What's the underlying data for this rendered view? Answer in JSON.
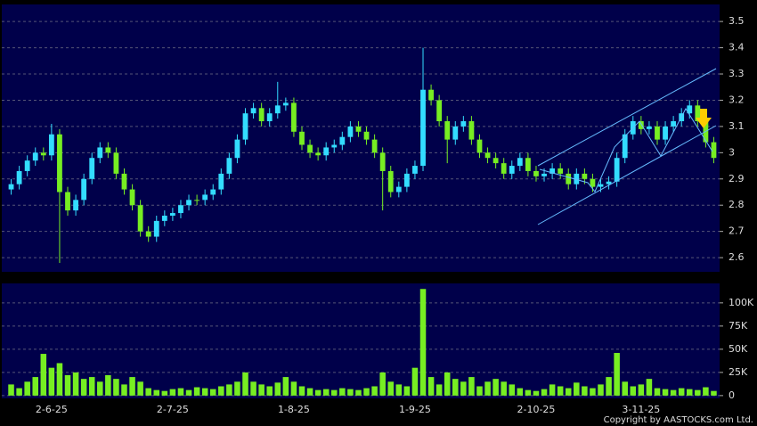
{
  "chart_data": [
    {
      "type": "candlestick",
      "up_color": "#33ddff",
      "down_color": "#77ee22",
      "grid": true,
      "ylim": [
        2.546,
        3.565
      ],
      "yticks": [
        2.6,
        2.7,
        2.8,
        2.9,
        3,
        3.1,
        3.2,
        3.3,
        3.4,
        3.5
      ],
      "open": [
        2.86,
        2.88,
        2.93,
        2.97,
        3.0,
        2.99,
        3.07,
        2.85,
        2.78,
        2.82,
        2.9,
        2.98,
        3.02,
        3.0,
        2.92,
        2.86,
        2.8,
        2.7,
        2.68,
        2.74,
        2.76,
        2.77,
        2.8,
        2.82,
        2.82,
        2.84,
        2.86,
        2.92,
        2.98,
        3.05,
        3.15,
        3.17,
        3.12,
        3.15,
        3.18,
        3.19,
        3.08,
        3.03,
        3.0,
        2.99,
        3.02,
        3.03,
        3.06,
        3.1,
        3.08,
        3.05,
        3.0,
        2.93,
        2.85,
        2.87,
        2.92,
        2.95,
        3.24,
        3.2,
        3.12,
        3.05,
        3.1,
        3.12,
        3.05,
        3.0,
        2.98,
        2.96,
        2.92,
        2.95,
        2.98,
        2.93,
        2.91,
        2.92,
        2.94,
        2.92,
        2.88,
        2.92,
        2.9,
        2.87,
        2.88,
        2.89,
        2.98,
        3.07,
        3.12,
        3.09,
        3.1,
        3.05,
        3.1,
        3.12,
        3.15,
        3.18,
        3.12,
        3.04
      ],
      "high": [
        2.9,
        2.95,
        2.99,
        3.02,
        3.02,
        3.11,
        3.09,
        2.87,
        2.84,
        2.92,
        3.0,
        3.04,
        3.04,
        3.02,
        2.94,
        2.88,
        2.82,
        2.72,
        2.76,
        2.78,
        2.79,
        2.82,
        2.84,
        2.84,
        2.86,
        2.88,
        2.94,
        3.0,
        3.07,
        3.17,
        3.19,
        3.19,
        3.17,
        3.27,
        3.21,
        3.21,
        3.1,
        3.05,
        3.02,
        3.04,
        3.05,
        3.08,
        3.12,
        3.12,
        3.1,
        3.07,
        3.02,
        2.95,
        2.89,
        2.94,
        2.97,
        3.4,
        3.26,
        3.22,
        3.14,
        3.12,
        3.14,
        3.14,
        3.07,
        3.02,
        3.0,
        2.98,
        2.97,
        3.0,
        3.0,
        2.95,
        2.94,
        2.96,
        2.96,
        2.94,
        2.94,
        2.94,
        2.92,
        2.9,
        2.91,
        3.0,
        3.09,
        3.14,
        3.14,
        3.12,
        3.12,
        3.12,
        3.14,
        3.17,
        3.2,
        3.2,
        3.14,
        3.06
      ],
      "low": [
        2.84,
        2.86,
        2.91,
        2.95,
        2.97,
        2.97,
        2.58,
        2.76,
        2.76,
        2.8,
        2.88,
        2.96,
        2.98,
        2.9,
        2.84,
        2.78,
        2.68,
        2.66,
        2.66,
        2.72,
        2.74,
        2.75,
        2.78,
        2.8,
        2.8,
        2.82,
        2.84,
        2.9,
        2.96,
        3.03,
        3.13,
        3.1,
        3.1,
        3.13,
        3.16,
        3.06,
        3.01,
        2.98,
        2.97,
        2.97,
        3.0,
        3.01,
        3.04,
        3.06,
        3.03,
        2.98,
        2.78,
        2.83,
        2.83,
        2.85,
        2.9,
        2.93,
        3.18,
        3.1,
        2.96,
        3.03,
        3.08,
        3.03,
        2.98,
        2.96,
        2.94,
        2.9,
        2.9,
        2.93,
        2.91,
        2.89,
        2.89,
        2.9,
        2.9,
        2.86,
        2.86,
        2.88,
        2.85,
        2.85,
        2.86,
        2.87,
        2.96,
        3.05,
        3.07,
        3.07,
        3.03,
        3.03,
        3.08,
        3.1,
        3.13,
        3.1,
        3.02,
        2.96
      ],
      "close": [
        2.88,
        2.93,
        2.97,
        3.0,
        2.99,
        3.07,
        2.85,
        2.78,
        2.82,
        2.9,
        2.98,
        3.02,
        3.0,
        2.92,
        2.86,
        2.8,
        2.7,
        2.68,
        2.74,
        2.76,
        2.77,
        2.8,
        2.82,
        2.82,
        2.84,
        2.86,
        2.92,
        2.98,
        3.05,
        3.15,
        3.17,
        3.12,
        3.15,
        3.18,
        3.19,
        3.08,
        3.03,
        3.0,
        2.99,
        3.02,
        3.03,
        3.06,
        3.1,
        3.08,
        3.05,
        3.0,
        2.93,
        2.85,
        2.87,
        2.92,
        2.95,
        3.24,
        3.2,
        3.12,
        3.05,
        3.1,
        3.12,
        3.05,
        3.0,
        2.98,
        2.96,
        2.92,
        2.95,
        2.98,
        2.93,
        2.91,
        2.92,
        2.94,
        2.92,
        2.88,
        2.92,
        2.9,
        2.87,
        2.88,
        2.89,
        2.98,
        3.07,
        3.12,
        3.09,
        3.1,
        3.05,
        3.1,
        3.12,
        3.15,
        3.18,
        3.12,
        3.04,
        2.98
      ]
    },
    {
      "type": "bar",
      "color": "#77ee22",
      "grid": true,
      "ylim": [
        -3000,
        121000
      ],
      "yticks": [
        0,
        {
          "value": 25000,
          "label": "25K"
        },
        {
          "value": 50000,
          "label": "50K"
        },
        {
          "value": 75000,
          "label": "75K"
        },
        {
          "value": 100000,
          "label": "100K"
        }
      ],
      "categories": [
        null,
        null,
        null,
        null,
        null,
        "2-6-25",
        null,
        null,
        null,
        null,
        null,
        null,
        null,
        null,
        null,
        null,
        null,
        null,
        null,
        null,
        "2-7-25",
        null,
        null,
        null,
        null,
        null,
        null,
        null,
        null,
        null,
        null,
        null,
        null,
        null,
        null,
        "1-8-25",
        null,
        null,
        null,
        null,
        null,
        null,
        null,
        null,
        null,
        null,
        null,
        null,
        null,
        null,
        "1-9-25",
        null,
        null,
        null,
        null,
        null,
        null,
        null,
        null,
        null,
        null,
        null,
        null,
        null,
        null,
        "2-10-25",
        null,
        null,
        null,
        null,
        null,
        null,
        null,
        null,
        null,
        null,
        null,
        null,
        "3-11-25",
        null,
        null,
        null,
        null,
        null,
        null,
        null,
        null,
        null
      ],
      "values": [
        12000,
        8000,
        15000,
        20000,
        45000,
        30000,
        35000,
        22000,
        25000,
        18000,
        20000,
        15000,
        22000,
        18000,
        12000,
        20000,
        15000,
        8000,
        6000,
        5000,
        7000,
        8000,
        6000,
        9000,
        8000,
        7000,
        10000,
        12000,
        15000,
        25000,
        15000,
        12000,
        10000,
        14000,
        20000,
        15000,
        10000,
        8000,
        6000,
        7000,
        6000,
        8000,
        7000,
        6000,
        8000,
        10000,
        25000,
        15000,
        12000,
        10000,
        30000,
        115000,
        20000,
        12000,
        25000,
        18000,
        15000,
        20000,
        10000,
        15000,
        18000,
        15000,
        12000,
        8000,
        6000,
        5000,
        7000,
        12000,
        10000,
        8000,
        14000,
        10000,
        8000,
        12000,
        20000,
        46000,
        15000,
        10000,
        12000,
        18000,
        8000,
        7000,
        6000,
        8000,
        7000,
        6000,
        9000,
        5000
      ]
    }
  ],
  "copyright": "Copyright by AASTOCKS.com Ltd."
}
